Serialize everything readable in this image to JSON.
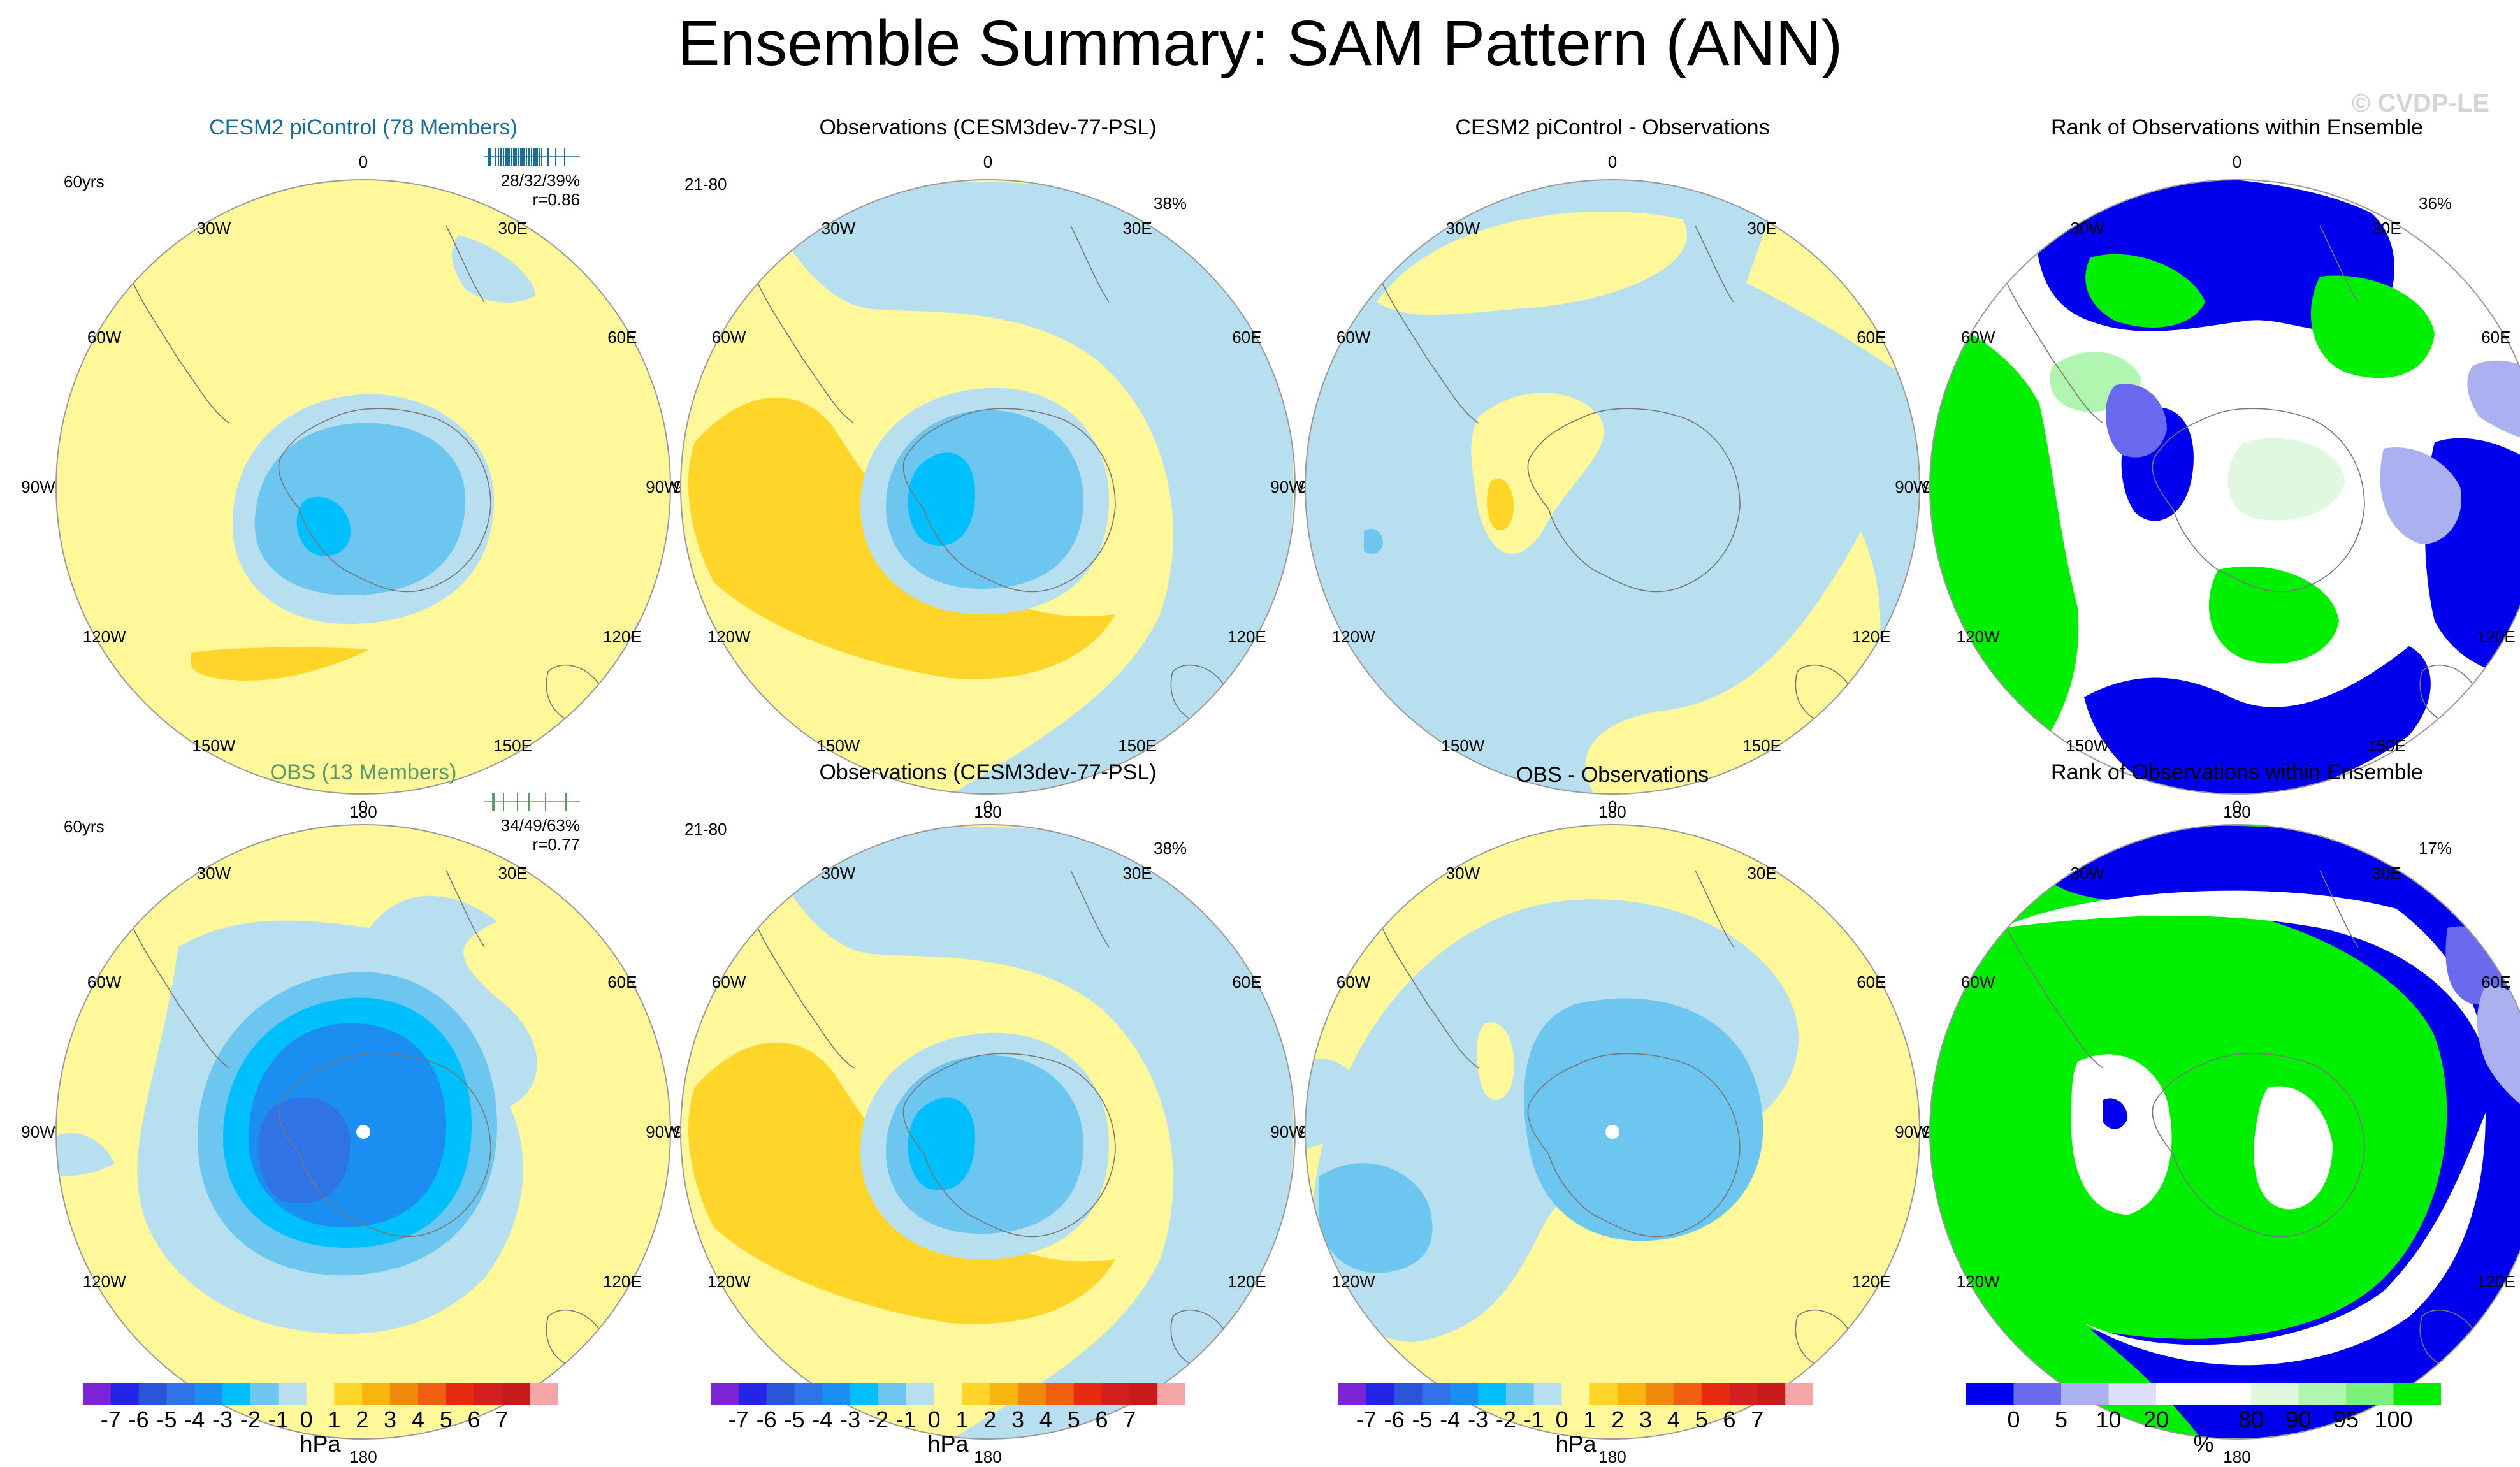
{
  "title": "Ensemble Summary: SAM Pattern (ANN)",
  "watermark": "© CVDP-LE",
  "colors": {
    "hpa": [
      "#7b25d6",
      "#2424e6",
      "#2a55d8",
      "#2f73e6",
      "#1b8ef2",
      "#00bfff",
      "#6cc6f0",
      "#b8dff0",
      "#fff89a",
      "#ffd52a",
      "#f7b50d",
      "#f08a0a",
      "#f06010",
      "#e82a10",
      "#d21f20",
      "#c71a1a",
      "#f5a5a5"
    ],
    "rank": [
      "#0000ee",
      "#6a6aee",
      "#aab0f0",
      "#dde0f8",
      "#ffffff",
      "#ffffff",
      "#dff8df",
      "#b0f5b0",
      "#7cf07c",
      "#00ee00"
    ]
  },
  "lon_labels": [
    "0",
    "30E",
    "60E",
    "90E",
    "120E",
    "150E",
    "180",
    "150W",
    "120W",
    "90W",
    "60W",
    "30W"
  ],
  "rows": [
    {
      "ens_title": "CESM2 piControl (78 Members)",
      "ens_color": "#1a6e96",
      "ens_years": "60yrs",
      "ens_stats": [
        "28/32/39%",
        "r=0.86"
      ],
      "obs_title": "Observations (CESM3dev-77-PSL)",
      "obs_years": "21-80",
      "obs_pct": "38%",
      "diff_title": "CESM2 piControl - Observations",
      "rank_title": "Rank of Observations within Ensemble",
      "rank_pct": "36%"
    },
    {
      "ens_title": "OBS (13 Members)",
      "ens_color": "#5e9a68",
      "ens_years": "60yrs",
      "ens_stats": [
        "34/49/63%",
        "r=0.77"
      ],
      "obs_title": "Observations (CESM3dev-77-PSL)",
      "obs_years": "21-80",
      "obs_pct": "38%",
      "diff_title": "OBS - Observations",
      "rank_title": "Rank of Observations within Ensemble",
      "rank_pct": "17%"
    }
  ],
  "colorbars": [
    {
      "labels": [
        "-7",
        "-6",
        "-5",
        "-4",
        "-3",
        "-2",
        "-1",
        "0",
        "1",
        "2",
        "3",
        "4",
        "5",
        "6",
        "7"
      ],
      "unit": "hPa"
    },
    {
      "labels": [
        "-7",
        "-6",
        "-5",
        "-4",
        "-3",
        "-2",
        "-1",
        "0",
        "1",
        "2",
        "3",
        "4",
        "5",
        "6",
        "7"
      ],
      "unit": "hPa"
    },
    {
      "labels": [
        "-7",
        "-6",
        "-5",
        "-4",
        "-3",
        "-2",
        "-1",
        "0",
        "1",
        "2",
        "3",
        "4",
        "5",
        "6",
        "7"
      ],
      "unit": "hPa"
    },
    {
      "labels": [
        "0",
        "5",
        "10",
        "20",
        "80",
        "90",
        "95",
        "100"
      ],
      "unit": "%"
    }
  ],
  "chart_data": {
    "type": "polar-stereographic contour map panels",
    "title": "Ensemble Summary: SAM Pattern (ANN)",
    "hpa_levels": [
      -7,
      -6,
      -5,
      -4,
      -3,
      -2,
      -1,
      0,
      1,
      2,
      3,
      4,
      5,
      6,
      7
    ],
    "rank_levels": [
      0,
      5,
      10,
      20,
      80,
      90,
      95,
      100
    ],
    "units": [
      "hPa",
      "%"
    ],
    "panels": [
      {
        "title": "CESM2 piControl (78 Members)",
        "central_min_hPa": -3,
        "subpolar_max_hPa": 1,
        "period": "60yrs",
        "stats": "28/32/39%",
        "r": 0.86
      },
      {
        "title": "Observations (CESM3dev-77-PSL)",
        "central_min_hPa": -3,
        "subpolar_max_hPa": 2,
        "period": "21-80",
        "pct": 38
      },
      {
        "title": "CESM2 piControl - Observations",
        "range_hPa": [
          -1,
          1
        ]
      },
      {
        "title": "Rank of Observations within Ensemble",
        "pct": 36
      },
      {
        "title": "OBS (13 Members)",
        "central_min_hPa": -4,
        "subpolar_max_hPa": 1,
        "period": "60yrs",
        "stats": "34/49/63%",
        "r": 0.77
      },
      {
        "title": "Observations (CESM3dev-77-PSL)",
        "central_min_hPa": -3,
        "subpolar_max_hPa": 2,
        "period": "21-80",
        "pct": 38
      },
      {
        "title": "OBS - Observations",
        "range_hPa": [
          -2,
          1
        ]
      },
      {
        "title": "Rank of Observations within Ensemble",
        "pct": 17
      }
    ]
  }
}
